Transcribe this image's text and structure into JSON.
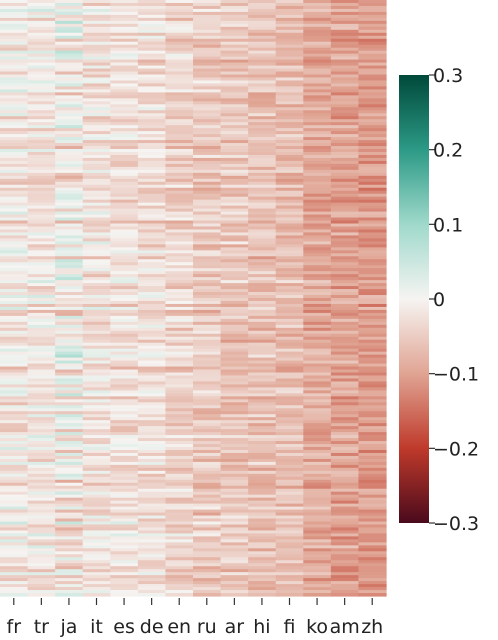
{
  "chart_data": {
    "type": "heatmap",
    "title": "",
    "xlabel": "",
    "ylabel": "",
    "columns": [
      "fr",
      "tr",
      "ja",
      "it",
      "es",
      "de",
      "en",
      "ru",
      "ar",
      "hi",
      "fi",
      "ko",
      "am",
      "zh"
    ],
    "row_count": 200,
    "column_mean_values": [
      -0.015,
      -0.018,
      -0.01,
      -0.025,
      -0.028,
      -0.03,
      -0.04,
      -0.052,
      -0.058,
      -0.062,
      -0.07,
      -0.092,
      -0.1,
      -0.108
    ],
    "color_range": [
      -0.3,
      0.3
    ],
    "colorbar": {
      "ticks": [
        0.3,
        0.2,
        0.1,
        0,
        -0.1,
        -0.2,
        -0.3
      ],
      "tick_labels": [
        "0.3",
        "0.2",
        "0.1",
        "0",
        "−0.1",
        "−0.2",
        "−0.3"
      ],
      "colors": {
        "max": "#00493a",
        "high": "#2c9a86",
        "mid_high": "#9fd9cb",
        "zero": "#f6f4f2",
        "mid_low": "#e0a493",
        "low": "#bf3a2b",
        "min": "#4a0a1c"
      }
    },
    "legend_position": "right"
  }
}
